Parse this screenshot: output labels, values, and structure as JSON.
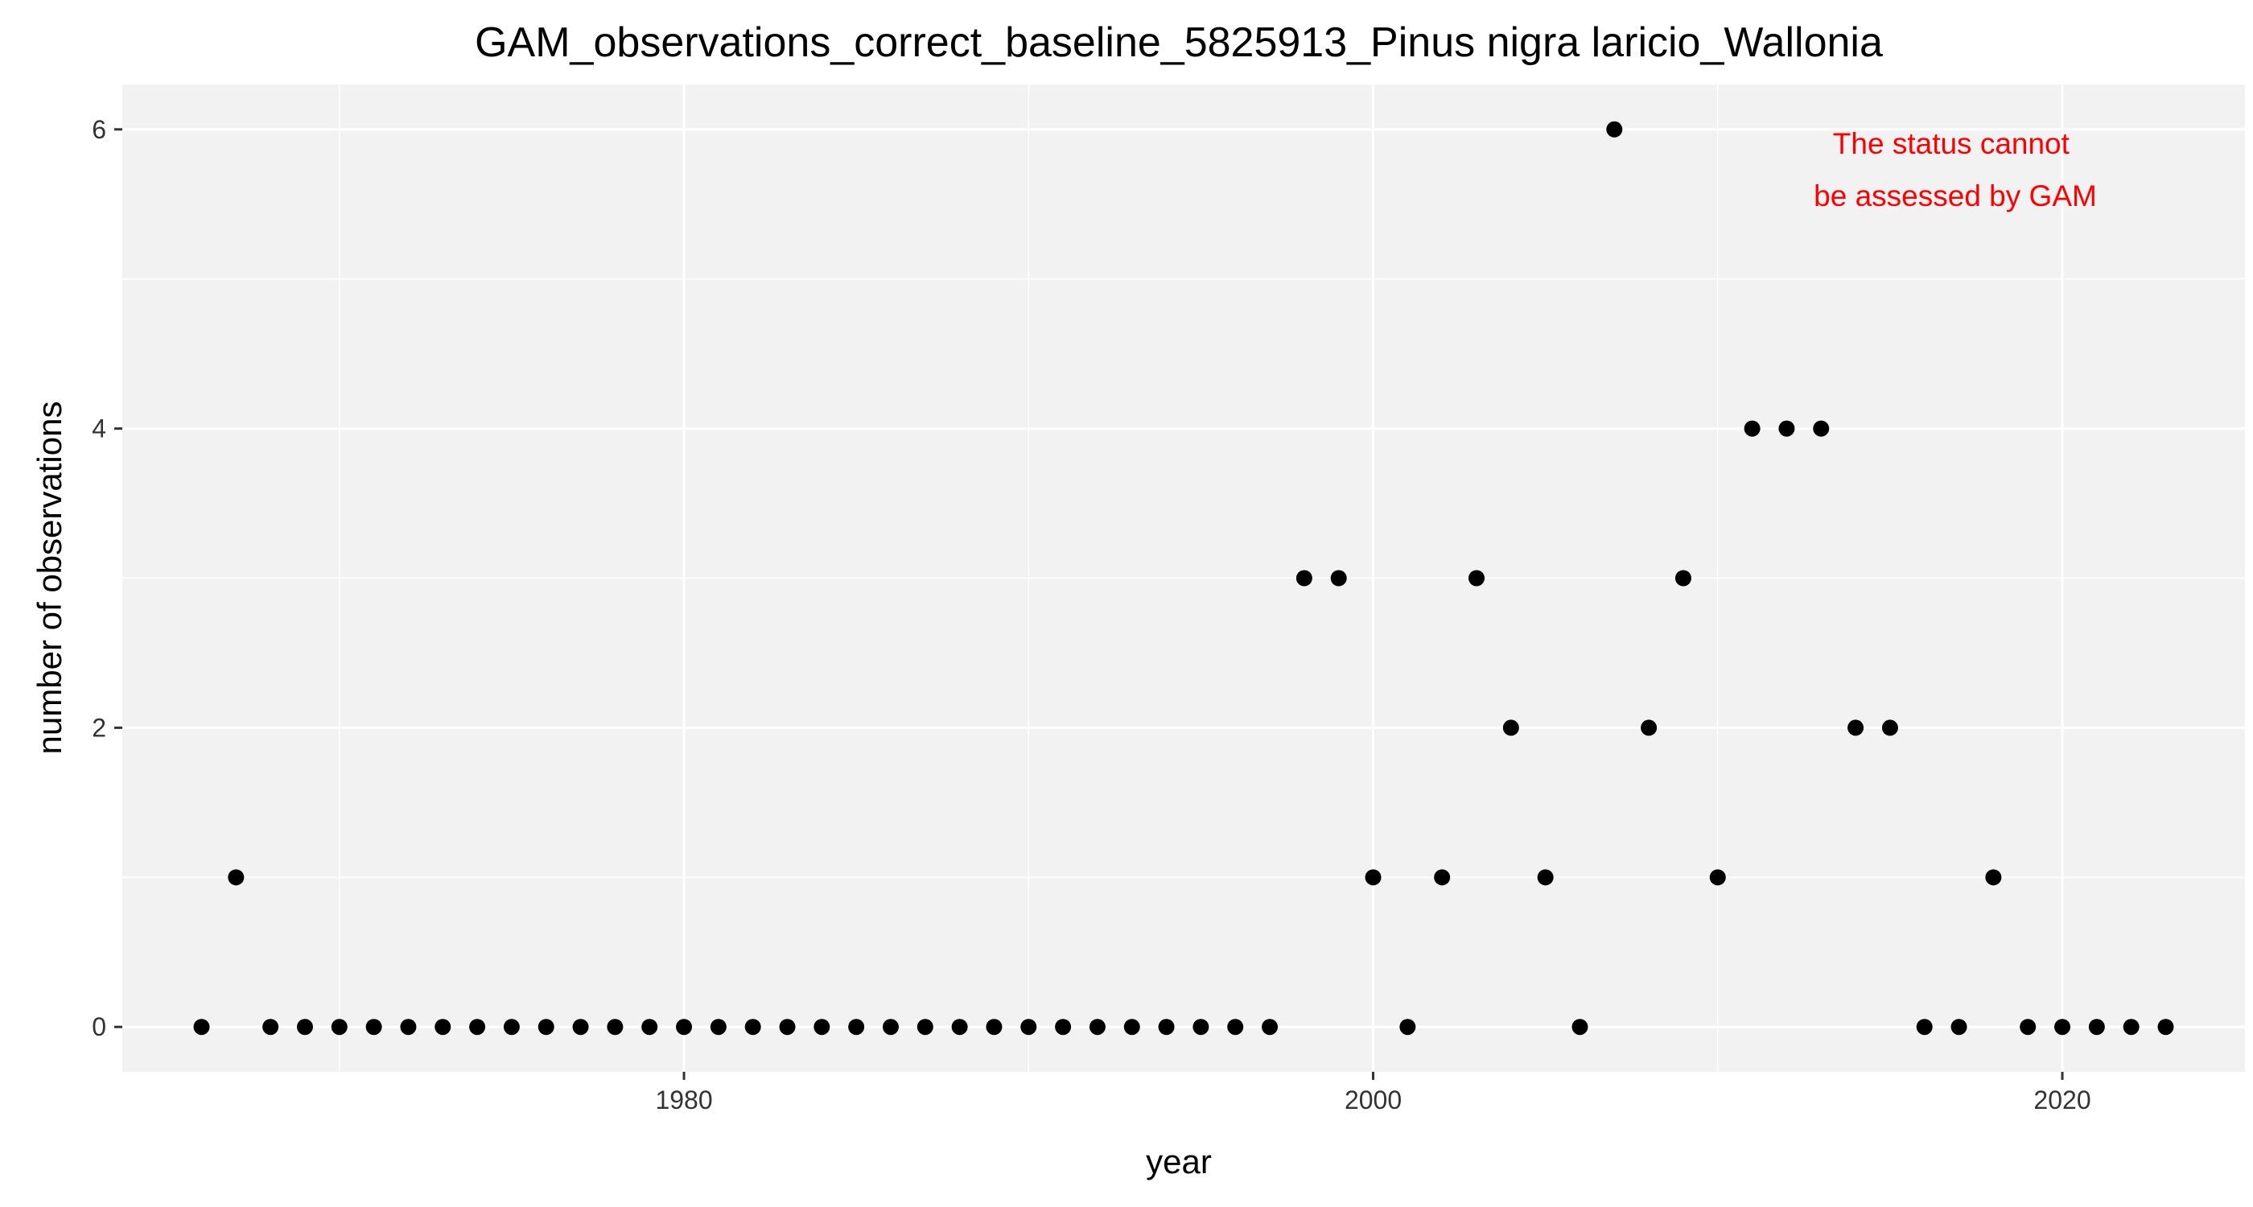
{
  "chart_data": {
    "type": "scatter",
    "title": "GAM_observations_correct_baseline_5825913_Pinus nigra laricio_Wallonia",
    "xlabel": "year",
    "ylabel": "number of observations",
    "xlim": [
      1963.7,
      2025.3
    ],
    "ylim": [
      -0.3,
      6.3
    ],
    "x_ticks": [
      1980,
      2000,
      2020
    ],
    "y_ticks": [
      0,
      2,
      4,
      6
    ],
    "grid": true,
    "legend": "none",
    "colors": {
      "panel_background": "#f2f2f2",
      "grid": "#ffffff",
      "points": "#000000",
      "annotation": "#ff0000"
    },
    "annotation": {
      "lines": [
        "The status cannot",
        "be assessed by GAM"
      ],
      "placement": "top-right"
    },
    "points": [
      {
        "x": 1966,
        "y": 0
      },
      {
        "x": 1967,
        "y": 1
      },
      {
        "x": 1968,
        "y": 0
      },
      {
        "x": 1969,
        "y": 0
      },
      {
        "x": 1970,
        "y": 0
      },
      {
        "x": 1971,
        "y": 0
      },
      {
        "x": 1972,
        "y": 0
      },
      {
        "x": 1973,
        "y": 0
      },
      {
        "x": 1974,
        "y": 0
      },
      {
        "x": 1975,
        "y": 0
      },
      {
        "x": 1976,
        "y": 0
      },
      {
        "x": 1977,
        "y": 0
      },
      {
        "x": 1978,
        "y": 0
      },
      {
        "x": 1979,
        "y": 0
      },
      {
        "x": 1980,
        "y": 0
      },
      {
        "x": 1981,
        "y": 0
      },
      {
        "x": 1982,
        "y": 0
      },
      {
        "x": 1983,
        "y": 0
      },
      {
        "x": 1984,
        "y": 0
      },
      {
        "x": 1985,
        "y": 0
      },
      {
        "x": 1986,
        "y": 0
      },
      {
        "x": 1987,
        "y": 0
      },
      {
        "x": 1988,
        "y": 0
      },
      {
        "x": 1989,
        "y": 0
      },
      {
        "x": 1990,
        "y": 0
      },
      {
        "x": 1991,
        "y": 0
      },
      {
        "x": 1992,
        "y": 0
      },
      {
        "x": 1993,
        "y": 0
      },
      {
        "x": 1994,
        "y": 0
      },
      {
        "x": 1995,
        "y": 0
      },
      {
        "x": 1996,
        "y": 0
      },
      {
        "x": 1997,
        "y": 0
      },
      {
        "x": 1998,
        "y": 3
      },
      {
        "x": 1999,
        "y": 3
      },
      {
        "x": 2000,
        "y": 1
      },
      {
        "x": 2001,
        "y": 0
      },
      {
        "x": 2002,
        "y": 1
      },
      {
        "x": 2003,
        "y": 3
      },
      {
        "x": 2004,
        "y": 2
      },
      {
        "x": 2005,
        "y": 1
      },
      {
        "x": 2006,
        "y": 0
      },
      {
        "x": 2007,
        "y": 6
      },
      {
        "x": 2008,
        "y": 2
      },
      {
        "x": 2009,
        "y": 3
      },
      {
        "x": 2010,
        "y": 1
      },
      {
        "x": 2011,
        "y": 4
      },
      {
        "x": 2012,
        "y": 4
      },
      {
        "x": 2013,
        "y": 4
      },
      {
        "x": 2014,
        "y": 2
      },
      {
        "x": 2015,
        "y": 2
      },
      {
        "x": 2016,
        "y": 0
      },
      {
        "x": 2017,
        "y": 0
      },
      {
        "x": 2018,
        "y": 1
      },
      {
        "x": 2019,
        "y": 0
      },
      {
        "x": 2020,
        "y": 0
      },
      {
        "x": 2021,
        "y": 0
      },
      {
        "x": 2022,
        "y": 0
      },
      {
        "x": 2023,
        "y": 0
      }
    ]
  }
}
